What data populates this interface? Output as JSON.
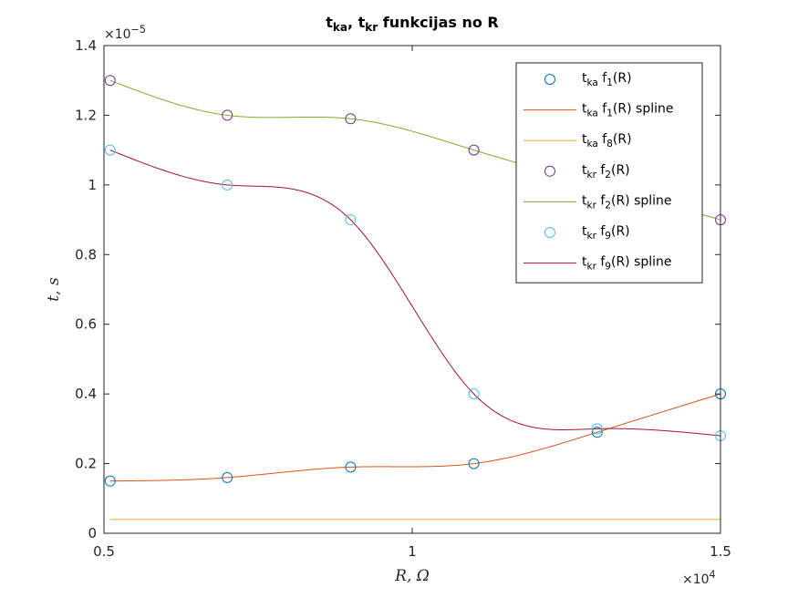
{
  "chart_data": {
    "type": "line",
    "title_parts": [
      {
        "t": "t",
        "sub": false
      },
      {
        "t": "ka",
        "sub": true
      },
      {
        "t": ", t",
        "sub": false
      },
      {
        "t": "kr",
        "sub": true
      },
      {
        "t": " funkcijas no R",
        "sub": false
      }
    ],
    "title": "tka, tkr funkcijas no R",
    "xlabel": "R, Ω",
    "ylabel": "t, s",
    "xlim": [
      5000,
      15000
    ],
    "ylim": [
      0,
      1.4e-05
    ],
    "x_ticks": [
      5000,
      10000,
      15000
    ],
    "x_tick_labels": [
      "0.5",
      "1",
      "1.5"
    ],
    "y_ticks": [
      0,
      2e-06,
      4e-06,
      6e-06,
      8e-06,
      1e-05,
      1.2e-05,
      1.4e-05
    ],
    "y_tick_labels": [
      "0",
      "0.2",
      "0.4",
      "0.6",
      "0.8",
      "1",
      "1.2",
      "1.4"
    ],
    "x_exponent_label": "×10",
    "x_exponent_power": "4",
    "y_exponent_label": "×10",
    "y_exponent_power": "−5",
    "grid": false,
    "legend_position": "top-right",
    "colors": {
      "f1_markers": "#0072BD",
      "f1_spline": "#D95319",
      "f8_line": "#EDB120",
      "f2_markers": "#7E2F8E",
      "f2_spline": "#77AC30",
      "f9_markers": "#4DBEEE",
      "f9_spline": "#A2142F"
    },
    "series": [
      {
        "key": "f1",
        "x": [
          5100,
          7000,
          9000,
          11000,
          13000,
          15000
        ],
        "y": [
          1.5e-06,
          1.6e-06,
          1.9e-06,
          2e-06,
          2.9e-06,
          4e-06
        ]
      },
      {
        "key": "f2",
        "x": [
          5100,
          7000,
          9000,
          11000,
          13000,
          15000
        ],
        "y": [
          1.3e-05,
          1.2e-05,
          1.19e-05,
          1.1e-05,
          1e-05,
          9e-06
        ]
      },
      {
        "key": "f8",
        "x": [
          5100,
          15000
        ],
        "y": [
          4e-07,
          4e-07
        ]
      },
      {
        "key": "f9",
        "x": [
          5100,
          7000,
          9000,
          11000,
          13000,
          15000
        ],
        "y": [
          1.1e-05,
          1e-05,
          9e-06,
          4e-06,
          3e-06,
          2.8e-06
        ]
      }
    ],
    "legend": [
      {
        "main": "t",
        "sub1": "ka",
        "mid": " f",
        "sub2": "1",
        "tail": "(R)"
      },
      {
        "main": "t",
        "sub1": "ka",
        "mid": " f",
        "sub2": "1",
        "tail": "(R) spline"
      },
      {
        "main": "t",
        "sub1": "ka",
        "mid": " f",
        "sub2": "8",
        "tail": "(R)"
      },
      {
        "main": "t",
        "sub1": "kr",
        "mid": " f",
        "sub2": "2",
        "tail": "(R)"
      },
      {
        "main": "t",
        "sub1": "kr",
        "mid": " f",
        "sub2": "2",
        "tail": "(R) spline"
      },
      {
        "main": "t",
        "sub1": "kr",
        "mid": " f",
        "sub2": "9",
        "tail": "(R)"
      },
      {
        "main": "t",
        "sub1": "kr",
        "mid": " f",
        "sub2": "9",
        "tail": "(R) spline"
      }
    ]
  }
}
